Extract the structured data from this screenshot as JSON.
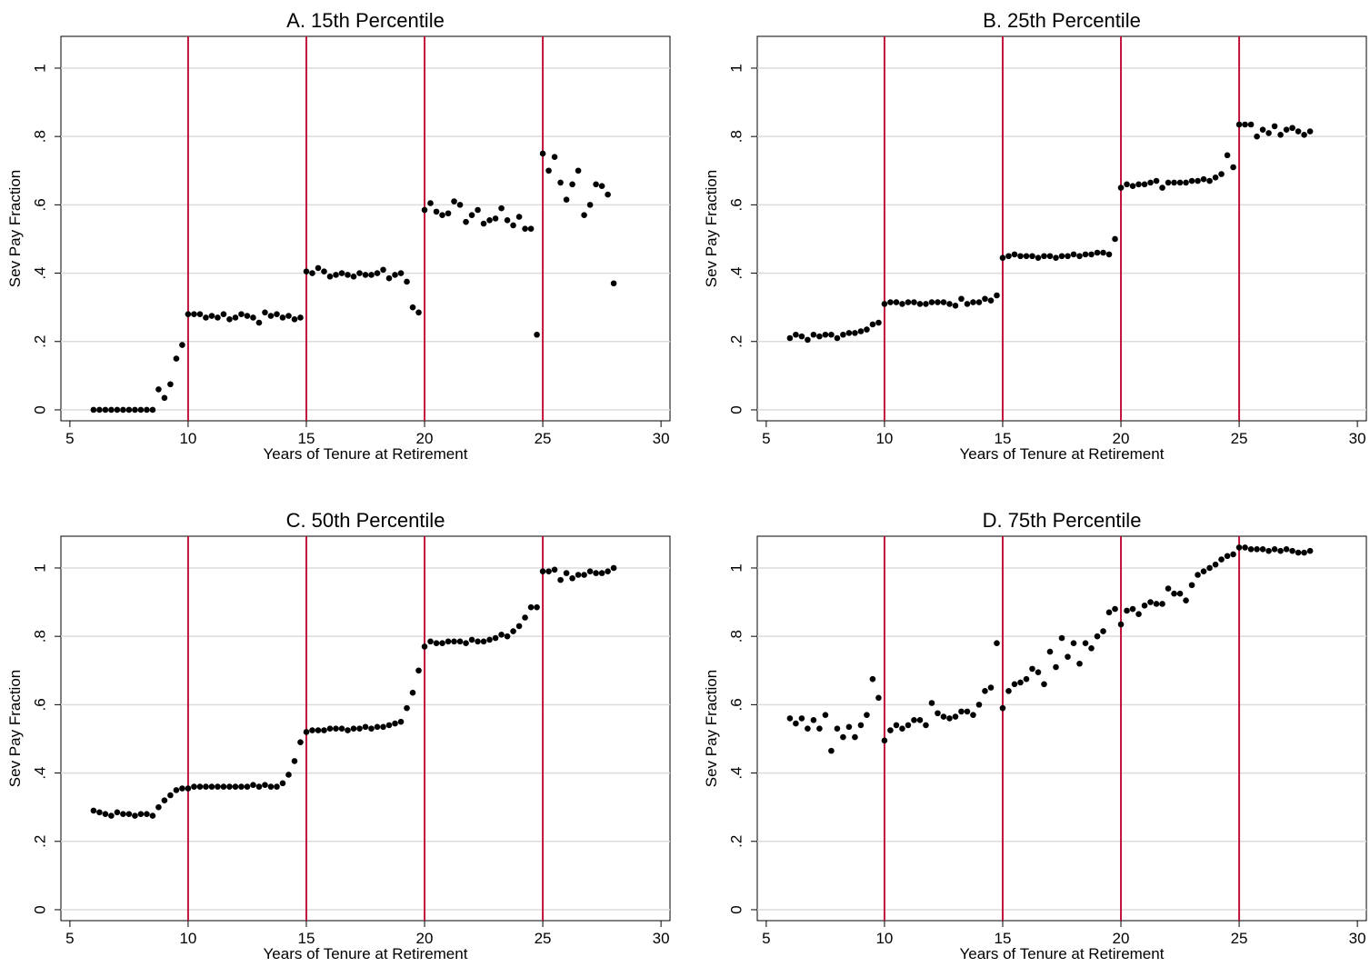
{
  "chart_data": [
    {
      "type": "scatter",
      "title": "A. 15th Percentile",
      "x_label": "Years of Tenure at Retirement",
      "y_label": "Sev Pay Fraction",
      "xlim": [
        4.62,
        30.38
      ],
      "ylim": [
        -0.032,
        1.093
      ],
      "xticks": [
        5,
        10,
        15,
        20,
        25,
        30
      ],
      "yticks": [
        0,
        {
          "value": 0.2,
          "label": ".2"
        },
        {
          "value": 0.4,
          "label": ".4"
        },
        {
          "value": 0.6,
          "label": ".6"
        },
        {
          "value": 0.8,
          "label": ".8"
        },
        1
      ],
      "grid": true,
      "color": "#000000",
      "reference_lines": [
        10,
        15,
        20,
        25
      ],
      "reference_line_color": "#c0143c",
      "x": [
        6,
        6.25,
        6.5,
        6.75,
        7,
        7.25,
        7.5,
        7.75,
        8,
        8.25,
        8.5,
        8.75,
        9,
        9.25,
        9.5,
        9.75,
        10,
        10.25,
        10.5,
        10.75,
        11,
        11.25,
        11.5,
        11.75,
        12,
        12.25,
        12.5,
        12.75,
        13,
        13.25,
        13.5,
        13.75,
        14,
        14.25,
        14.5,
        14.75,
        15,
        15.25,
        15.5,
        15.75,
        16,
        16.25,
        16.5,
        16.75,
        17,
        17.25,
        17.5,
        17.75,
        18,
        18.25,
        18.5,
        18.75,
        19,
        19.25,
        19.5,
        19.75,
        20,
        20.25,
        20.5,
        20.75,
        21,
        21.25,
        21.5,
        21.75,
        22,
        22.25,
        22.5,
        22.75,
        23,
        23.25,
        23.5,
        23.75,
        24,
        24.25,
        24.5,
        24.75,
        25,
        25.25,
        25.5,
        25.75,
        26,
        26.25,
        26.5,
        26.75,
        27,
        27.25,
        27.5,
        27.75,
        28
      ],
      "values": [
        0,
        0,
        0,
        0,
        0,
        0,
        0,
        0,
        0,
        0,
        0,
        0.06,
        0.035,
        0.075,
        0.15,
        0.19,
        0.28,
        0.28,
        0.28,
        0.27,
        0.275,
        0.27,
        0.28,
        0.265,
        0.27,
        0.28,
        0.275,
        0.27,
        0.255,
        0.285,
        0.275,
        0.28,
        0.27,
        0.275,
        0.265,
        0.27,
        0.405,
        0.4,
        0.415,
        0.405,
        0.39,
        0.395,
        0.4,
        0.395,
        0.39,
        0.4,
        0.395,
        0.395,
        0.4,
        0.41,
        0.385,
        0.395,
        0.4,
        0.375,
        0.3,
        0.285,
        0.585,
        0.605,
        0.58,
        0.57,
        0.575,
        0.61,
        0.6,
        0.55,
        0.57,
        0.585,
        0.545,
        0.555,
        0.56,
        0.59,
        0.555,
        0.54,
        0.565,
        0.53,
        0.53,
        0.22,
        0.75,
        0.7,
        0.74,
        0.665,
        0.615,
        0.66,
        0.7,
        0.57,
        0.6,
        0.66,
        0.655,
        0.63,
        0.37
      ]
    },
    {
      "type": "scatter",
      "title": "B. 25th Percentile",
      "x_label": "Years of Tenure at Retirement",
      "y_label": "Sev Pay Fraction",
      "xlim": [
        4.62,
        30.38
      ],
      "ylim": [
        -0.032,
        1.093
      ],
      "xticks": [
        5,
        10,
        15,
        20,
        25,
        30
      ],
      "yticks": [
        0,
        {
          "value": 0.2,
          "label": ".2"
        },
        {
          "value": 0.4,
          "label": ".4"
        },
        {
          "value": 0.6,
          "label": ".6"
        },
        {
          "value": 0.8,
          "label": ".8"
        },
        1
      ],
      "grid": true,
      "color": "#000000",
      "reference_lines": [
        10,
        15,
        20,
        25
      ],
      "reference_line_color": "#c0143c",
      "x": [
        6,
        6.25,
        6.5,
        6.75,
        7,
        7.25,
        7.5,
        7.75,
        8,
        8.25,
        8.5,
        8.75,
        9,
        9.25,
        9.5,
        9.75,
        10,
        10.25,
        10.5,
        10.75,
        11,
        11.25,
        11.5,
        11.75,
        12,
        12.25,
        12.5,
        12.75,
        13,
        13.25,
        13.5,
        13.75,
        14,
        14.25,
        14.5,
        14.75,
        15,
        15.25,
        15.5,
        15.75,
        16,
        16.25,
        16.5,
        16.75,
        17,
        17.25,
        17.5,
        17.75,
        18,
        18.25,
        18.5,
        18.75,
        19,
        19.25,
        19.5,
        19.75,
        20,
        20.25,
        20.5,
        20.75,
        21,
        21.25,
        21.5,
        21.75,
        22,
        22.25,
        22.5,
        22.75,
        23,
        23.25,
        23.5,
        23.75,
        24,
        24.25,
        24.5,
        24.75,
        25,
        25.25,
        25.5,
        25.75,
        26,
        26.25,
        26.5,
        26.75,
        27,
        27.25,
        27.5,
        27.75,
        28
      ],
      "values": [
        0.21,
        0.22,
        0.215,
        0.205,
        0.22,
        0.215,
        0.22,
        0.22,
        0.21,
        0.22,
        0.225,
        0.225,
        0.23,
        0.235,
        0.25,
        0.255,
        0.31,
        0.315,
        0.315,
        0.31,
        0.315,
        0.315,
        0.31,
        0.31,
        0.315,
        0.315,
        0.315,
        0.31,
        0.305,
        0.325,
        0.31,
        0.315,
        0.315,
        0.325,
        0.32,
        0.335,
        0.445,
        0.45,
        0.455,
        0.45,
        0.45,
        0.45,
        0.445,
        0.45,
        0.45,
        0.445,
        0.45,
        0.45,
        0.455,
        0.45,
        0.455,
        0.455,
        0.46,
        0.46,
        0.455,
        0.5,
        0.65,
        0.66,
        0.655,
        0.66,
        0.66,
        0.665,
        0.67,
        0.65,
        0.665,
        0.665,
        0.665,
        0.665,
        0.67,
        0.67,
        0.675,
        0.67,
        0.68,
        0.69,
        0.745,
        0.71,
        0.835,
        0.835,
        0.835,
        0.8,
        0.82,
        0.81,
        0.83,
        0.805,
        0.82,
        0.825,
        0.815,
        0.805,
        0.815
      ]
    },
    {
      "type": "scatter",
      "title": "C. 50th Percentile",
      "x_label": "Years of Tenure at Retirement",
      "y_label": "Sev Pay Fraction",
      "xlim": [
        4.62,
        30.38
      ],
      "ylim": [
        -0.032,
        1.093
      ],
      "xticks": [
        5,
        10,
        15,
        20,
        25,
        30
      ],
      "yticks": [
        0,
        {
          "value": 0.2,
          "label": ".2"
        },
        {
          "value": 0.4,
          "label": ".4"
        },
        {
          "value": 0.6,
          "label": ".6"
        },
        {
          "value": 0.8,
          "label": ".8"
        },
        1
      ],
      "grid": true,
      "color": "#000000",
      "reference_lines": [
        10,
        15,
        20,
        25
      ],
      "reference_line_color": "#c0143c",
      "x": [
        6,
        6.25,
        6.5,
        6.75,
        7,
        7.25,
        7.5,
        7.75,
        8,
        8.25,
        8.5,
        8.75,
        9,
        9.25,
        9.5,
        9.75,
        10,
        10.25,
        10.5,
        10.75,
        11,
        11.25,
        11.5,
        11.75,
        12,
        12.25,
        12.5,
        12.75,
        13,
        13.25,
        13.5,
        13.75,
        14,
        14.25,
        14.5,
        14.75,
        15,
        15.25,
        15.5,
        15.75,
        16,
        16.25,
        16.5,
        16.75,
        17,
        17.25,
        17.5,
        17.75,
        18,
        18.25,
        18.5,
        18.75,
        19,
        19.25,
        19.5,
        19.75,
        20,
        20.25,
        20.5,
        20.75,
        21,
        21.25,
        21.5,
        21.75,
        22,
        22.25,
        22.5,
        22.75,
        23,
        23.25,
        23.5,
        23.75,
        24,
        24.25,
        24.5,
        24.75,
        25,
        25.25,
        25.5,
        25.75,
        26,
        26.25,
        26.5,
        26.75,
        27,
        27.25,
        27.5,
        27.75,
        28
      ],
      "values": [
        0.29,
        0.285,
        0.28,
        0.275,
        0.285,
        0.28,
        0.28,
        0.275,
        0.28,
        0.28,
        0.275,
        0.3,
        0.32,
        0.335,
        0.35,
        0.355,
        0.355,
        0.36,
        0.36,
        0.36,
        0.36,
        0.36,
        0.36,
        0.36,
        0.36,
        0.36,
        0.36,
        0.365,
        0.36,
        0.365,
        0.36,
        0.36,
        0.37,
        0.395,
        0.435,
        0.49,
        0.52,
        0.525,
        0.525,
        0.525,
        0.53,
        0.53,
        0.53,
        0.525,
        0.53,
        0.53,
        0.535,
        0.53,
        0.535,
        0.535,
        0.54,
        0.545,
        0.55,
        0.59,
        0.635,
        0.7,
        0.77,
        0.785,
        0.78,
        0.78,
        0.785,
        0.785,
        0.785,
        0.78,
        0.79,
        0.785,
        0.785,
        0.79,
        0.795,
        0.805,
        0.8,
        0.815,
        0.83,
        0.855,
        0.885,
        0.885,
        0.99,
        0.99,
        0.995,
        0.965,
        0.985,
        0.97,
        0.98,
        0.98,
        0.99,
        0.985,
        0.985,
        0.99,
        1.0
      ]
    },
    {
      "type": "scatter",
      "title": "D. 75th Percentile",
      "x_label": "Years of Tenure at Retirement",
      "y_label": "Sev Pay Fraction",
      "xlim": [
        4.62,
        30.38
      ],
      "ylim": [
        -0.032,
        1.093
      ],
      "xticks": [
        5,
        10,
        15,
        20,
        25,
        30
      ],
      "yticks": [
        0,
        {
          "value": 0.2,
          "label": ".2"
        },
        {
          "value": 0.4,
          "label": ".4"
        },
        {
          "value": 0.6,
          "label": ".6"
        },
        {
          "value": 0.8,
          "label": ".8"
        },
        1
      ],
      "grid": true,
      "color": "#000000",
      "reference_lines": [
        10,
        15,
        20,
        25
      ],
      "reference_line_color": "#c0143c",
      "x": [
        6,
        6.25,
        6.5,
        6.75,
        7,
        7.25,
        7.5,
        7.75,
        8,
        8.25,
        8.5,
        8.75,
        9,
        9.25,
        9.5,
        9.75,
        10,
        10.25,
        10.5,
        10.75,
        11,
        11.25,
        11.5,
        11.75,
        12,
        12.25,
        12.5,
        12.75,
        13,
        13.25,
        13.5,
        13.75,
        14,
        14.25,
        14.5,
        14.75,
        15,
        15.25,
        15.5,
        15.75,
        16,
        16.25,
        16.5,
        16.75,
        17,
        17.25,
        17.5,
        17.75,
        18,
        18.25,
        18.5,
        18.75,
        19,
        19.25,
        19.5,
        19.75,
        20,
        20.25,
        20.5,
        20.75,
        21,
        21.25,
        21.5,
        21.75,
        22,
        22.25,
        22.5,
        22.75,
        23,
        23.25,
        23.5,
        23.75,
        24,
        24.25,
        24.5,
        24.75,
        25,
        25.25,
        25.5,
        25.75,
        26,
        26.25,
        26.5,
        26.75,
        27,
        27.25,
        27.5,
        27.75,
        28
      ],
      "values": [
        0.56,
        0.545,
        0.56,
        0.53,
        0.555,
        0.53,
        0.57,
        0.465,
        0.53,
        0.505,
        0.535,
        0.505,
        0.54,
        0.57,
        0.675,
        0.62,
        0.495,
        0.525,
        0.54,
        0.53,
        0.54,
        0.555,
        0.555,
        0.54,
        0.605,
        0.575,
        0.565,
        0.56,
        0.565,
        0.58,
        0.58,
        0.57,
        0.6,
        0.64,
        0.65,
        0.78,
        0.59,
        0.64,
        0.66,
        0.665,
        0.675,
        0.705,
        0.695,
        0.66,
        0.755,
        0.71,
        0.795,
        0.74,
        0.78,
        0.72,
        0.78,
        0.765,
        0.8,
        0.815,
        0.87,
        0.88,
        0.835,
        0.875,
        0.88,
        0.865,
        0.89,
        0.9,
        0.895,
        0.895,
        0.94,
        0.925,
        0.925,
        0.905,
        0.95,
        0.98,
        0.99,
        1.0,
        1.01,
        1.025,
        1.035,
        1.04,
        1.06,
        1.06,
        1.055,
        1.055,
        1.055,
        1.05,
        1.055,
        1.05,
        1.055,
        1.05,
        1.045,
        1.045,
        1.05
      ]
    }
  ]
}
